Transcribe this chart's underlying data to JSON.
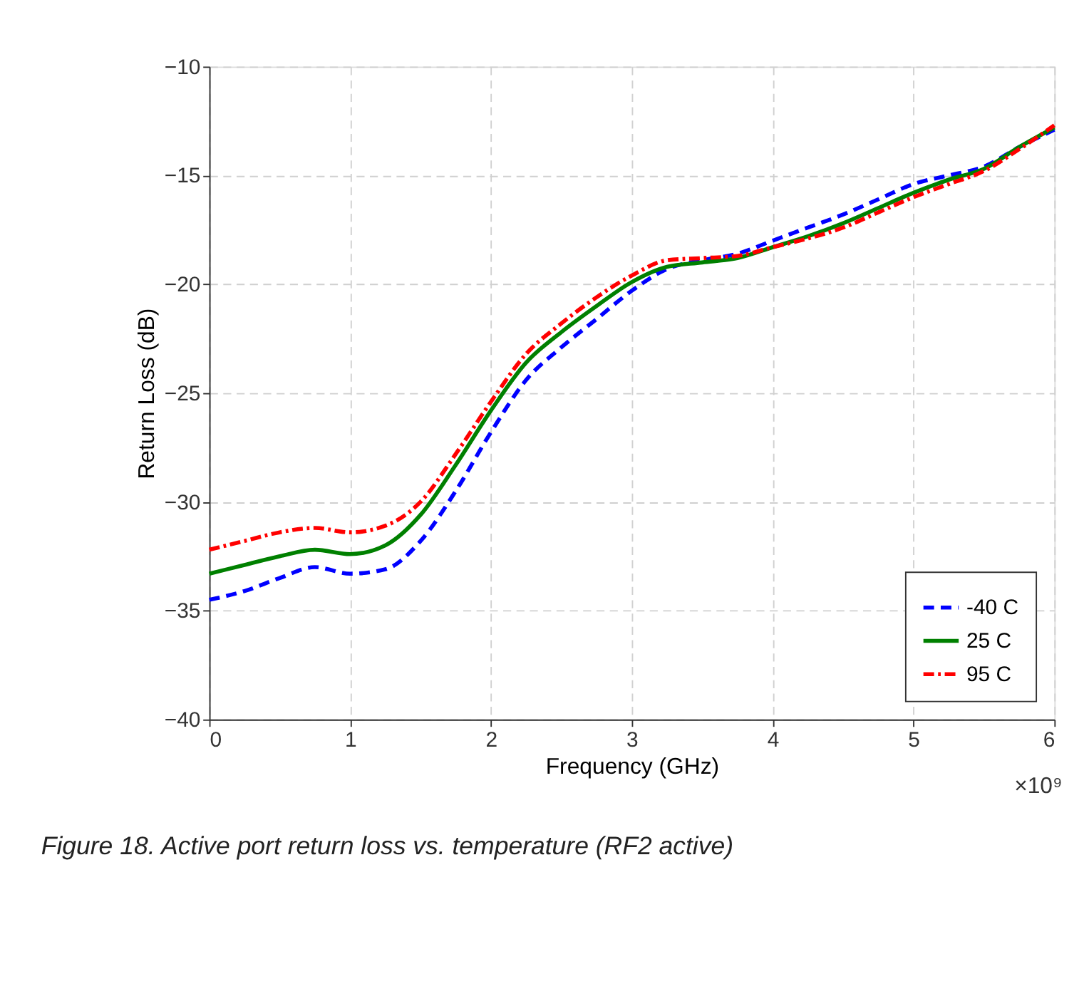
{
  "chart_data": {
    "type": "line",
    "xlabel": "Frequency (GHz)",
    "ylabel": "Return Loss (dB)",
    "x": [
      0,
      0.25,
      0.5,
      0.75,
      1,
      1.25,
      1.5,
      1.75,
      2,
      2.25,
      2.5,
      2.75,
      3,
      3.25,
      3.5,
      3.75,
      4,
      4.25,
      4.5,
      4.75,
      5,
      5.25,
      5.5,
      5.75,
      6
    ],
    "series": [
      {
        "name": "-40 C",
        "color": "#0000ff",
        "line_style": "dashed",
        "values": [
          -34.5,
          -34.1,
          -33.5,
          -33.0,
          -33.3,
          -33.1,
          -31.8,
          -29.5,
          -26.8,
          -24.4,
          -22.9,
          -21.6,
          -20.3,
          -19.3,
          -18.9,
          -18.6,
          -18.0,
          -17.4,
          -16.8,
          -16.1,
          -15.4,
          -15.0,
          -14.6,
          -13.7,
          -12.9
        ]
      },
      {
        "name": "25 C",
        "color": "#008000",
        "line_style": "solid",
        "values": [
          -33.3,
          -32.9,
          -32.5,
          -32.2,
          -32.4,
          -32.0,
          -30.6,
          -28.3,
          -25.8,
          -23.6,
          -22.2,
          -21.0,
          -19.9,
          -19.2,
          -19.0,
          -18.8,
          -18.3,
          -17.8,
          -17.2,
          -16.5,
          -15.8,
          -15.2,
          -14.7,
          -13.7,
          -12.8
        ]
      },
      {
        "name": "95 C",
        "color": "#ff0000",
        "line_style": "dashdot",
        "values": [
          -32.2,
          -31.8,
          -31.4,
          -31.2,
          -31.4,
          -31.1,
          -30.0,
          -27.8,
          -25.4,
          -23.2,
          -21.8,
          -20.6,
          -19.6,
          -18.9,
          -18.8,
          -18.7,
          -18.3,
          -17.9,
          -17.4,
          -16.7,
          -16.0,
          -15.4,
          -14.8,
          -13.8,
          -12.7
        ]
      }
    ],
    "xlim": [
      0,
      6
    ],
    "xticks": [
      0,
      1,
      2,
      3,
      4,
      5,
      6
    ],
    "ylim": [
      -40,
      -10
    ],
    "yticks": [
      -40,
      -35,
      -30,
      -25,
      -20,
      -15,
      -10
    ],
    "grid": true,
    "legend": "bottom right",
    "marker": "none",
    "annotations": [
      "×10⁹",
      "Figure 18. Active port return loss vs. temperature (RF2 active)"
    ]
  }
}
